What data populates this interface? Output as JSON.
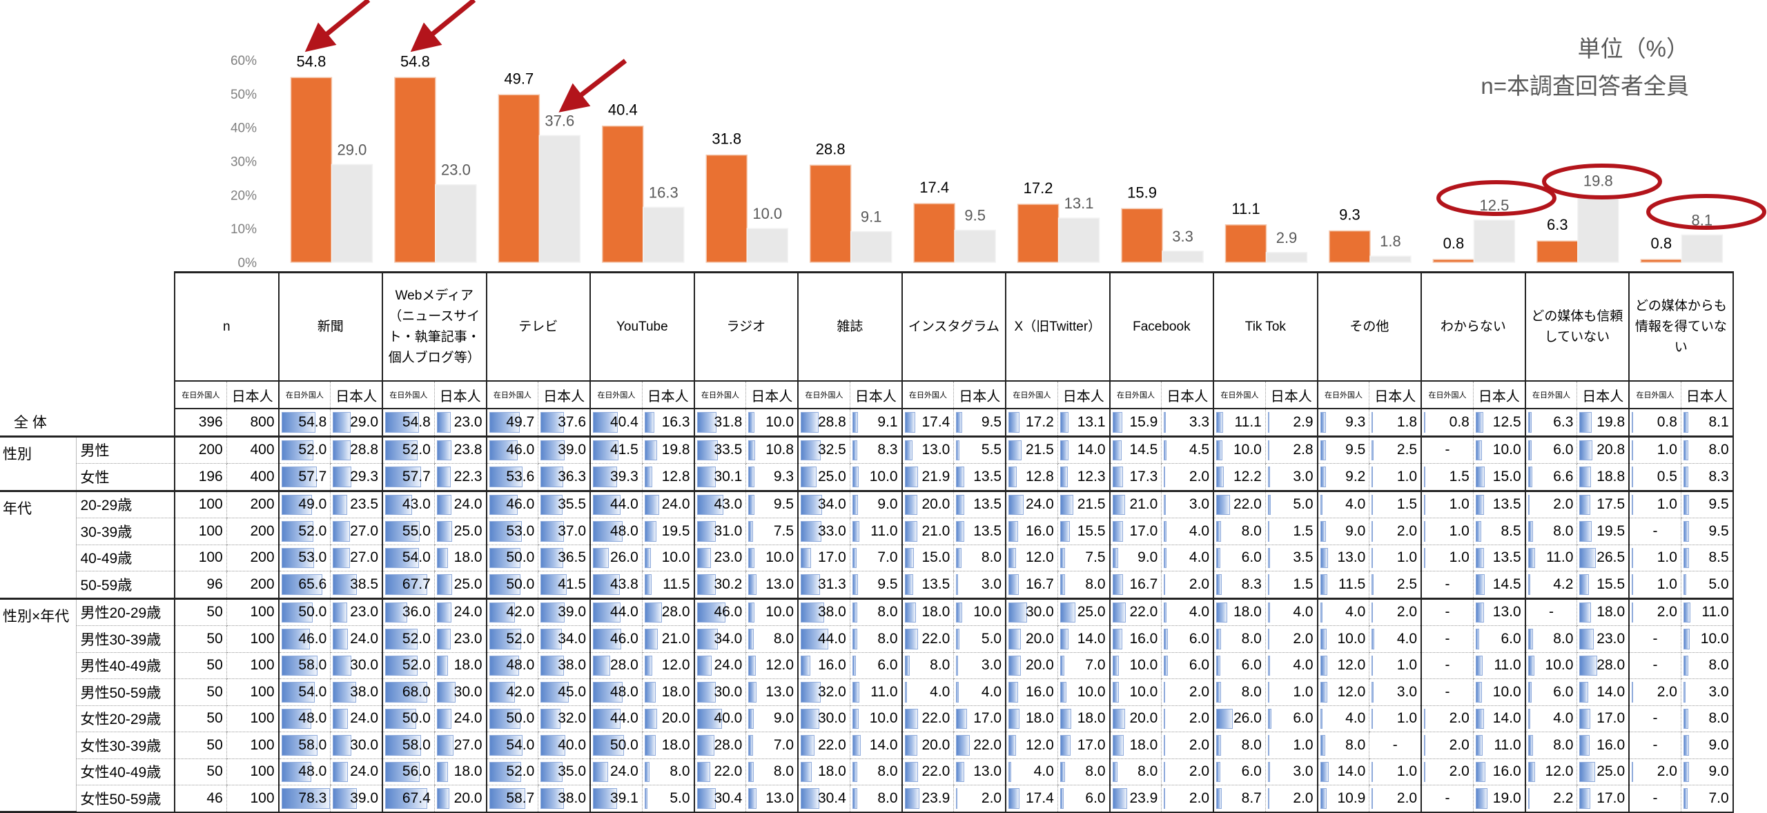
{
  "unit_note": "単位（%）",
  "base_note": "n=本調査回答者全員",
  "colors": {
    "foreign": "#e97132",
    "japanese": "#e8e8e8",
    "annotation": "#b3141b",
    "cell_bar": "#5b86cc"
  },
  "chart_data": {
    "type": "bar",
    "categories": [
      "新聞",
      "Webメディア",
      "テレビ",
      "YouTube",
      "ラジオ",
      "雑誌",
      "インスタグラム",
      "X（旧Twitter）",
      "Facebook",
      "Tik Tok",
      "その他",
      "わからない",
      "どの媒体も信頼していない",
      "どの媒体からも情報を得ていない"
    ],
    "series": [
      {
        "values": [
          54.8,
          54.8,
          49.7,
          40.4,
          31.8,
          28.8,
          17.4,
          17.2,
          15.9,
          11.1,
          9.3,
          0.8,
          6.3,
          0.8
        ],
        "color": "#e97132"
      },
      {
        "values": [
          29.0,
          23.0,
          37.6,
          16.3,
          10.0,
          9.1,
          9.5,
          13.1,
          3.3,
          2.9,
          1.8,
          12.5,
          19.8,
          8.1
        ],
        "color": "#e8e8e8"
      }
    ],
    "yticks": [
      "0%",
      "10%",
      "20%",
      "30%",
      "40%",
      "50%",
      "60%"
    ],
    "ylim": [
      0,
      60
    ],
    "grid": false,
    "annotations": {
      "arrows": [
        "新聞:series0",
        "Webメディア:series0",
        "テレビ:series1"
      ],
      "circles": [
        "わからない:series1",
        "どの媒体も信頼していない:series1",
        "どの媒体からも情報を得ていない:series1"
      ]
    }
  },
  "table": {
    "headers": [
      "n",
      "新聞",
      "Webメディア（ニュースサイト・執筆記事・個人ブログ等）",
      "テレビ",
      "YouTube",
      "ラジオ",
      "雑誌",
      "インスタグラム",
      "X（旧Twitter）",
      "Facebook",
      "Tik Tok",
      "その他",
      "わからない",
      "どの媒体も信頼していない",
      "どの媒体からも情報を得ていない"
    ],
    "subheaders": [
      "在日外国人",
      "日本人"
    ],
    "groups": [
      {
        "label": "全 体",
        "rows": [
          {
            "label": "",
            "values": [
              "396",
              "800",
              "54.8",
              "29.0",
              "54.8",
              "23.0",
              "49.7",
              "37.6",
              "40.4",
              "16.3",
              "31.8",
              "10.0",
              "28.8",
              "9.1",
              "17.4",
              "9.5",
              "17.2",
              "13.1",
              "15.9",
              "3.3",
              "11.1",
              "2.9",
              "9.3",
              "1.8",
              "0.8",
              "12.5",
              "6.3",
              "19.8",
              "0.8",
              "8.1"
            ]
          }
        ]
      },
      {
        "label": "性別",
        "rows": [
          {
            "label": "男性",
            "values": [
              "200",
              "400",
              "52.0",
              "28.8",
              "52.0",
              "23.8",
              "46.0",
              "39.0",
              "41.5",
              "19.8",
              "33.5",
              "10.8",
              "32.5",
              "8.3",
              "13.0",
              "5.5",
              "21.5",
              "14.0",
              "14.5",
              "4.5",
              "10.0",
              "2.8",
              "9.5",
              "2.5",
              "-",
              "10.0",
              "6.0",
              "20.8",
              "1.0",
              "8.0"
            ]
          },
          {
            "label": "女性",
            "values": [
              "196",
              "400",
              "57.7",
              "29.3",
              "57.7",
              "22.3",
              "53.6",
              "36.3",
              "39.3",
              "12.8",
              "30.1",
              "9.3",
              "25.0",
              "10.0",
              "21.9",
              "13.5",
              "12.8",
              "12.3",
              "17.3",
              "2.0",
              "12.2",
              "3.0",
              "9.2",
              "1.0",
              "1.5",
              "15.0",
              "6.6",
              "18.8",
              "0.5",
              "8.3"
            ]
          }
        ]
      },
      {
        "label": "年代",
        "rows": [
          {
            "label": "20-29歳",
            "values": [
              "100",
              "200",
              "49.0",
              "23.5",
              "43.0",
              "24.0",
              "46.0",
              "35.5",
              "44.0",
              "24.0",
              "43.0",
              "9.5",
              "34.0",
              "9.0",
              "20.0",
              "13.5",
              "24.0",
              "21.5",
              "21.0",
              "3.0",
              "22.0",
              "5.0",
              "4.0",
              "1.5",
              "1.0",
              "13.5",
              "2.0",
              "17.5",
              "1.0",
              "9.5"
            ]
          },
          {
            "label": "30-39歳",
            "values": [
              "100",
              "200",
              "52.0",
              "27.0",
              "55.0",
              "25.0",
              "53.0",
              "37.0",
              "48.0",
              "19.5",
              "31.0",
              "7.5",
              "33.0",
              "11.0",
              "21.0",
              "13.5",
              "16.0",
              "15.5",
              "17.0",
              "4.0",
              "8.0",
              "1.5",
              "9.0",
              "2.0",
              "1.0",
              "8.5",
              "8.0",
              "19.5",
              "-",
              "9.5"
            ]
          },
          {
            "label": "40-49歳",
            "values": [
              "100",
              "200",
              "53.0",
              "27.0",
              "54.0",
              "18.0",
              "50.0",
              "36.5",
              "26.0",
              "10.0",
              "23.0",
              "10.0",
              "17.0",
              "7.0",
              "15.0",
              "8.0",
              "12.0",
              "7.5",
              "9.0",
              "4.0",
              "6.0",
              "3.5",
              "13.0",
              "1.0",
              "1.0",
              "13.5",
              "11.0",
              "26.5",
              "1.0",
              "8.5"
            ]
          },
          {
            "label": "50-59歳",
            "values": [
              "96",
              "200",
              "65.6",
              "38.5",
              "67.7",
              "25.0",
              "50.0",
              "41.5",
              "43.8",
              "11.5",
              "30.2",
              "13.0",
              "31.3",
              "9.5",
              "13.5",
              "3.0",
              "16.7",
              "8.0",
              "16.7",
              "2.0",
              "8.3",
              "1.5",
              "11.5",
              "2.5",
              "-",
              "14.5",
              "4.2",
              "15.5",
              "1.0",
              "5.0"
            ]
          }
        ]
      },
      {
        "label": "性別×年代",
        "rows": [
          {
            "label": "男性20-29歳",
            "values": [
              "50",
              "100",
              "50.0",
              "23.0",
              "36.0",
              "24.0",
              "42.0",
              "39.0",
              "44.0",
              "28.0",
              "46.0",
              "10.0",
              "38.0",
              "8.0",
              "18.0",
              "10.0",
              "30.0",
              "25.0",
              "22.0",
              "4.0",
              "18.0",
              "4.0",
              "4.0",
              "2.0",
              "-",
              "13.0",
              "-",
              "18.0",
              "2.0",
              "11.0"
            ]
          },
          {
            "label": "男性30-39歳",
            "values": [
              "50",
              "100",
              "46.0",
              "24.0",
              "52.0",
              "23.0",
              "52.0",
              "34.0",
              "46.0",
              "21.0",
              "34.0",
              "8.0",
              "44.0",
              "8.0",
              "22.0",
              "5.0",
              "20.0",
              "14.0",
              "16.0",
              "6.0",
              "8.0",
              "2.0",
              "10.0",
              "4.0",
              "-",
              "6.0",
              "8.0",
              "23.0",
              "-",
              "10.0"
            ]
          },
          {
            "label": "男性40-49歳",
            "values": [
              "50",
              "100",
              "58.0",
              "30.0",
              "52.0",
              "18.0",
              "48.0",
              "38.0",
              "28.0",
              "12.0",
              "24.0",
              "12.0",
              "16.0",
              "6.0",
              "8.0",
              "3.0",
              "20.0",
              "7.0",
              "10.0",
              "6.0",
              "6.0",
              "4.0",
              "12.0",
              "1.0",
              "-",
              "11.0",
              "10.0",
              "28.0",
              "-",
              "8.0"
            ]
          },
          {
            "label": "男性50-59歳",
            "values": [
              "50",
              "100",
              "54.0",
              "38.0",
              "68.0",
              "30.0",
              "42.0",
              "45.0",
              "48.0",
              "18.0",
              "30.0",
              "13.0",
              "32.0",
              "11.0",
              "4.0",
              "4.0",
              "16.0",
              "10.0",
              "10.0",
              "2.0",
              "8.0",
              "1.0",
              "12.0",
              "3.0",
              "-",
              "10.0",
              "6.0",
              "14.0",
              "2.0",
              "3.0"
            ]
          },
          {
            "label": "女性20-29歳",
            "values": [
              "50",
              "100",
              "48.0",
              "24.0",
              "50.0",
              "24.0",
              "50.0",
              "32.0",
              "44.0",
              "20.0",
              "40.0",
              "9.0",
              "30.0",
              "10.0",
              "22.0",
              "17.0",
              "18.0",
              "18.0",
              "20.0",
              "2.0",
              "26.0",
              "6.0",
              "4.0",
              "1.0",
              "2.0",
              "14.0",
              "4.0",
              "17.0",
              "-",
              "8.0"
            ]
          },
          {
            "label": "女性30-39歳",
            "values": [
              "50",
              "100",
              "58.0",
              "30.0",
              "58.0",
              "27.0",
              "54.0",
              "40.0",
              "50.0",
              "18.0",
              "28.0",
              "7.0",
              "22.0",
              "14.0",
              "20.0",
              "22.0",
              "12.0",
              "17.0",
              "18.0",
              "2.0",
              "8.0",
              "1.0",
              "8.0",
              "-",
              "2.0",
              "11.0",
              "8.0",
              "16.0",
              "-",
              "9.0"
            ]
          },
          {
            "label": "女性40-49歳",
            "values": [
              "50",
              "100",
              "48.0",
              "24.0",
              "56.0",
              "18.0",
              "52.0",
              "35.0",
              "24.0",
              "8.0",
              "22.0",
              "8.0",
              "18.0",
              "8.0",
              "22.0",
              "13.0",
              "4.0",
              "8.0",
              "8.0",
              "2.0",
              "6.0",
              "3.0",
              "14.0",
              "1.0",
              "2.0",
              "16.0",
              "12.0",
              "25.0",
              "2.0",
              "9.0"
            ]
          },
          {
            "label": "女性50-59歳",
            "values": [
              "46",
              "100",
              "78.3",
              "39.0",
              "67.4",
              "20.0",
              "58.7",
              "38.0",
              "39.1",
              "5.0",
              "30.4",
              "13.0",
              "30.4",
              "8.0",
              "23.9",
              "2.0",
              "17.4",
              "6.0",
              "23.9",
              "2.0",
              "8.7",
              "2.0",
              "10.9",
              "2.0",
              "-",
              "19.0",
              "2.2",
              "17.0",
              "-",
              "7.0"
            ]
          }
        ]
      }
    ]
  }
}
